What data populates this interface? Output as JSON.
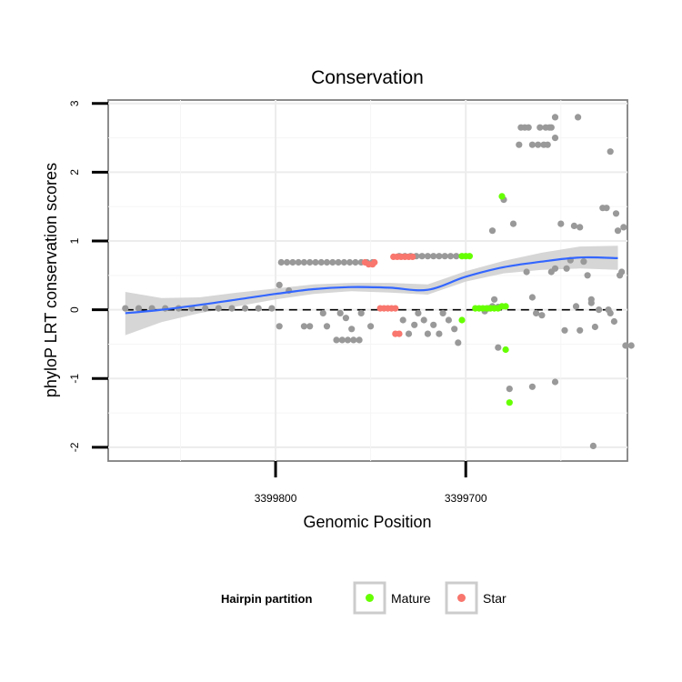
{
  "chart_data": {
    "type": "scatter",
    "title": "Conservation",
    "xlabel": "Genomic Position",
    "ylabel": "phyloP LRT conservation scores",
    "x_reversed": true,
    "xlim": [
      3399888,
      3399615
    ],
    "ylim": [
      -2.2,
      3.05
    ],
    "x_ticks": [
      {
        "value": 3399800,
        "label": "3399800"
      },
      {
        "value": 3399700,
        "label": "3399700"
      }
    ],
    "y_ticks": [
      {
        "value": -2,
        "label": "-2"
      },
      {
        "value": -1,
        "label": "-1"
      },
      {
        "value": 0,
        "label": "0"
      },
      {
        "value": 1,
        "label": "1"
      },
      {
        "value": 2,
        "label": "2"
      },
      {
        "value": 3,
        "label": "3"
      }
    ],
    "reference_line": {
      "y": 0,
      "style": "dashed"
    },
    "legend": {
      "title": "Hairpin partition",
      "position": "bottom",
      "entries": [
        {
          "label": "Mature",
          "color": "#66ff00"
        },
        {
          "label": "Star",
          "color": "#f8766d"
        }
      ]
    },
    "colors": {
      "Other": "#999999",
      "Mature": "#66ff00",
      "Star": "#f8766d",
      "smooth": "#3366ff",
      "ribbon": "#cccccc"
    },
    "smooth": {
      "x": [
        3399879,
        3399860,
        3399840,
        3399820,
        3399800,
        3399780,
        3399760,
        3399740,
        3399720,
        3399700,
        3399680,
        3399660,
        3399640,
        3399620
      ],
      "y": [
        -0.05,
        0.0,
        0.07,
        0.15,
        0.23,
        0.3,
        0.33,
        0.32,
        0.29,
        0.48,
        0.62,
        0.7,
        0.76,
        0.75
      ],
      "ci_low": [
        -0.37,
        -0.18,
        -0.05,
        0.05,
        0.15,
        0.23,
        0.27,
        0.25,
        0.22,
        0.41,
        0.53,
        0.58,
        0.6,
        0.58
      ],
      "ci_high": [
        0.26,
        0.17,
        0.18,
        0.25,
        0.31,
        0.37,
        0.39,
        0.39,
        0.37,
        0.56,
        0.71,
        0.83,
        0.92,
        0.93
      ]
    },
    "series": [
      {
        "name": "Other",
        "points": [
          [
            3399879,
            0.02
          ],
          [
            3399872,
            0.02
          ],
          [
            3399865,
            0.02
          ],
          [
            3399858,
            0.02
          ],
          [
            3399851,
            0.02
          ],
          [
            3399844,
            0.02
          ],
          [
            3399837,
            0.02
          ],
          [
            3399830,
            0.02
          ],
          [
            3399823,
            0.02
          ],
          [
            3399816,
            0.02
          ],
          [
            3399809,
            0.02
          ],
          [
            3399802,
            0.02
          ],
          [
            3399798,
            0.36
          ],
          [
            3399798,
            -0.24
          ],
          [
            3399797,
            0.69
          ],
          [
            3399794,
            0.69
          ],
          [
            3399791,
            0.69
          ],
          [
            3399788,
            0.69
          ],
          [
            3399785,
            0.69
          ],
          [
            3399782,
            0.69
          ],
          [
            3399779,
            0.69
          ],
          [
            3399776,
            0.69
          ],
          [
            3399773,
            0.69
          ],
          [
            3399770,
            0.69
          ],
          [
            3399767,
            0.69
          ],
          [
            3399764,
            0.69
          ],
          [
            3399761,
            0.69
          ],
          [
            3399758,
            0.69
          ],
          [
            3399755,
            0.69
          ],
          [
            3399752,
            0.69
          ],
          [
            3399749,
            0.69
          ],
          [
            3399793,
            0.28
          ],
          [
            3399785,
            -0.24
          ],
          [
            3399782,
            -0.24
          ],
          [
            3399775,
            -0.05
          ],
          [
            3399773,
            -0.24
          ],
          [
            3399768,
            -0.44
          ],
          [
            3399765,
            -0.44
          ],
          [
            3399762,
            -0.44
          ],
          [
            3399759,
            -0.44
          ],
          [
            3399756,
            -0.44
          ],
          [
            3399766,
            -0.05
          ],
          [
            3399763,
            -0.12
          ],
          [
            3399760,
            -0.28
          ],
          [
            3399755,
            -0.05
          ],
          [
            3399750,
            -0.24
          ],
          [
            3399735,
            0.78
          ],
          [
            3399732,
            0.78
          ],
          [
            3399729,
            0.78
          ],
          [
            3399726,
            0.78
          ],
          [
            3399723,
            0.78
          ],
          [
            3399720,
            0.78
          ],
          [
            3399717,
            0.78
          ],
          [
            3399714,
            0.78
          ],
          [
            3399711,
            0.78
          ],
          [
            3399708,
            0.78
          ],
          [
            3399705,
            0.78
          ],
          [
            3399733,
            -0.15
          ],
          [
            3399730,
            -0.35
          ],
          [
            3399727,
            -0.22
          ],
          [
            3399725,
            -0.05
          ],
          [
            3399722,
            -0.15
          ],
          [
            3399720,
            -0.35
          ],
          [
            3399717,
            -0.22
          ],
          [
            3399714,
            -0.35
          ],
          [
            3399712,
            -0.05
          ],
          [
            3399709,
            -0.15
          ],
          [
            3399706,
            -0.28
          ],
          [
            3399704,
            -0.48
          ],
          [
            3399690,
            -0.02
          ],
          [
            3399688,
            0.02
          ],
          [
            3399686,
            0.05
          ],
          [
            3399685,
            0.15
          ],
          [
            3399683,
            0.04
          ],
          [
            3399683,
            -0.55
          ],
          [
            3399680,
            1.6
          ],
          [
            3399675,
            1.25
          ],
          [
            3399671,
            2.65
          ],
          [
            3399669,
            2.65
          ],
          [
            3399667,
            2.65
          ],
          [
            3399665,
            2.4
          ],
          [
            3399672,
            2.4
          ],
          [
            3399662,
            2.4
          ],
          [
            3399659,
            2.4
          ],
          [
            3399661,
            2.65
          ],
          [
            3399658,
            2.65
          ],
          [
            3399655,
            2.65
          ],
          [
            3399656,
            2.65
          ],
          [
            3399653,
            2.5
          ],
          [
            3399657,
            2.4
          ],
          [
            3399653,
            2.8
          ],
          [
            3399668,
            0.55
          ],
          [
            3399665,
            0.18
          ],
          [
            3399663,
            -0.05
          ],
          [
            3399660,
            -0.08
          ],
          [
            3399655,
            0.55
          ],
          [
            3399653,
            0.6
          ],
          [
            3399650,
            1.25
          ],
          [
            3399647,
            0.6
          ],
          [
            3399645,
            0.72
          ],
          [
            3399648,
            -0.3
          ],
          [
            3399642,
            0.05
          ],
          [
            3399640,
            1.2
          ],
          [
            3399643,
            1.22
          ],
          [
            3399638,
            0.7
          ],
          [
            3399640,
            -0.3
          ],
          [
            3399641,
            2.8
          ],
          [
            3399636,
            0.5
          ],
          [
            3399634,
            0.1
          ],
          [
            3399634,
            0.15
          ],
          [
            3399632,
            -0.25
          ],
          [
            3399628,
            1.48
          ],
          [
            3399626,
            1.48
          ],
          [
            3399630,
            0.0
          ],
          [
            3399625,
            0.0
          ],
          [
            3399624,
            -0.05
          ],
          [
            3399624,
            2.3
          ],
          [
            3399622,
            -0.17
          ],
          [
            3399621,
            1.4
          ],
          [
            3399620,
            1.15
          ],
          [
            3399619,
            0.5
          ],
          [
            3399618,
            0.55
          ],
          [
            3399617,
            1.2
          ],
          [
            3399616,
            -0.52
          ],
          [
            3399613,
            -0.52
          ],
          [
            3399633,
            -1.98
          ],
          [
            3399665,
            -1.12
          ],
          [
            3399677,
            -1.15
          ],
          [
            3399653,
            -1.05
          ],
          [
            3399686,
            1.15
          ]
        ]
      },
      {
        "name": "Star",
        "points": [
          [
            3399753,
            0.69
          ],
          [
            3399751,
            0.66
          ],
          [
            3399749,
            0.66
          ],
          [
            3399748,
            0.69
          ],
          [
            3399745,
            0.02
          ],
          [
            3399743,
            0.02
          ],
          [
            3399741,
            0.02
          ],
          [
            3399739,
            0.02
          ],
          [
            3399737,
            0.02
          ],
          [
            3399738,
            0.77
          ],
          [
            3399736,
            0.77
          ],
          [
            3399734,
            0.77
          ],
          [
            3399732,
            0.77
          ],
          [
            3399730,
            0.77
          ],
          [
            3399728,
            0.77
          ],
          [
            3399737,
            -0.35
          ],
          [
            3399735,
            -0.35
          ]
        ]
      },
      {
        "name": "Mature",
        "points": [
          [
            3399702,
            0.78
          ],
          [
            3399700,
            0.78
          ],
          [
            3399698,
            0.78
          ],
          [
            3399695,
            0.02
          ],
          [
            3399693,
            0.02
          ],
          [
            3399691,
            0.02
          ],
          [
            3399689,
            0.02
          ],
          [
            3399687,
            0.02
          ],
          [
            3399685,
            0.02
          ],
          [
            3399683,
            0.02
          ],
          [
            3399681,
            0.05
          ],
          [
            3399679,
            0.05
          ],
          [
            3399702,
            -0.15
          ],
          [
            3399681,
            1.65
          ],
          [
            3399679,
            -0.58
          ],
          [
            3399677,
            -1.35
          ]
        ]
      }
    ]
  }
}
